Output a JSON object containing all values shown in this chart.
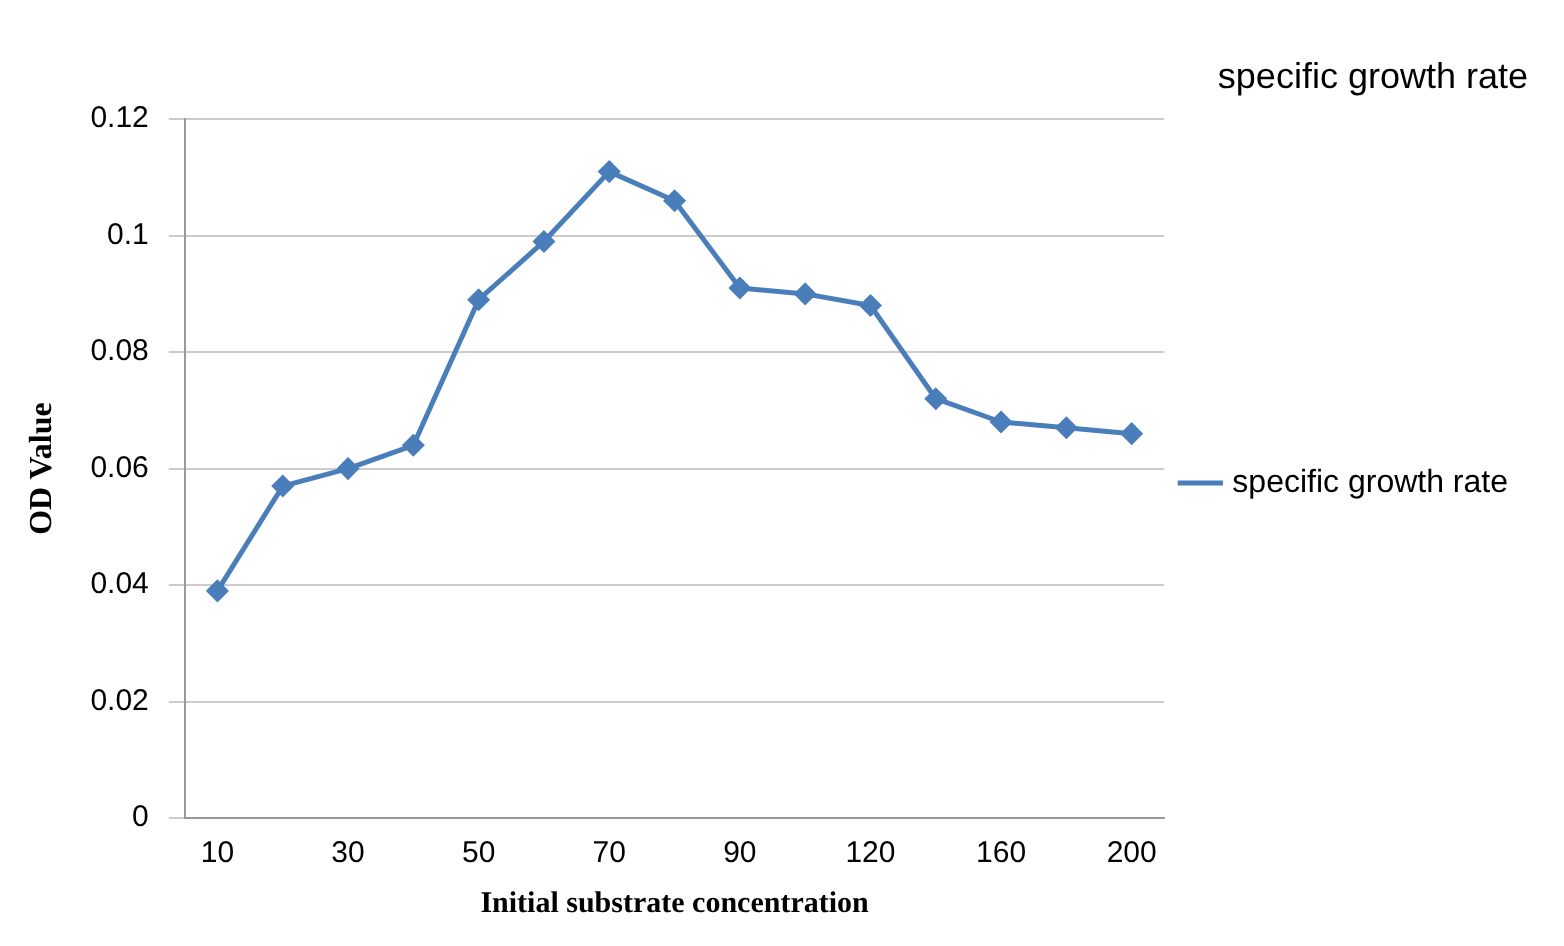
{
  "chart_data": {
    "type": "line",
    "title": "specific growth rate",
    "xlabel": "Initial substrate concentration",
    "ylabel": "OD Value",
    "categories": [
      "10",
      null,
      "30",
      null,
      "50",
      null,
      "70",
      null,
      "90",
      null,
      "120",
      null,
      "160",
      null,
      "200"
    ],
    "series": [
      {
        "name": "specific growth rate",
        "color": "#4a7ebb",
        "values": [
          0.039,
          0.057,
          0.06,
          0.064,
          0.089,
          0.099,
          0.111,
          0.106,
          0.091,
          0.09,
          0.088,
          0.072,
          0.068,
          0.067,
          0.066
        ]
      }
    ],
    "ylim": [
      0,
      0.12
    ],
    "yticks": [
      0,
      0.02,
      0.04,
      0.06,
      0.08,
      0.1,
      0.12
    ],
    "grid": "y",
    "legend": "right",
    "marker": "diamond",
    "line_style": "solid"
  }
}
